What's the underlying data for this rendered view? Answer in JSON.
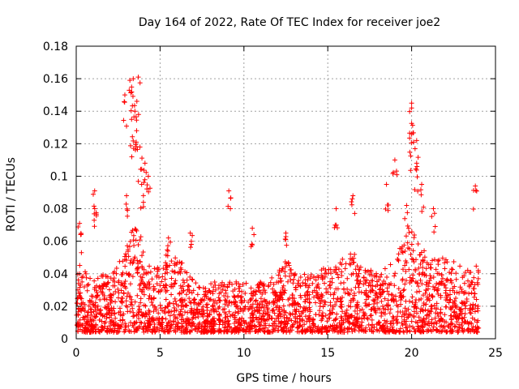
{
  "chart_data": {
    "type": "scatter",
    "title": "Day 164 of 2022, Rate Of TEC Index for receiver joe2",
    "xlabel": "GPS time / hours",
    "ylabel": "ROTI / TECUs",
    "xlim": [
      0,
      25
    ],
    "ylim": [
      0,
      0.18
    ],
    "grid": true,
    "marker": "+",
    "color": "#ff0000",
    "x_ticks": [
      {
        "value": 0,
        "label": "0"
      },
      {
        "value": 5,
        "label": "5"
      },
      {
        "value": 10,
        "label": "10"
      },
      {
        "value": 15,
        "label": "15"
      },
      {
        "value": 20,
        "label": "20"
      },
      {
        "value": 25,
        "label": "25"
      }
    ],
    "y_ticks": [
      {
        "value": 0,
        "label": "0"
      },
      {
        "value": 0.02,
        "label": "0.02"
      },
      {
        "value": 0.04,
        "label": "0.04"
      },
      {
        "value": 0.06,
        "label": "0.06"
      },
      {
        "value": 0.08,
        "label": "0.08"
      },
      {
        "value": 0.1,
        "label": "0.1"
      },
      {
        "value": 0.12,
        "label": "0.12"
      },
      {
        "value": 0.14,
        "label": "0.14"
      },
      {
        "value": 0.16,
        "label": "0.16"
      },
      {
        "value": 0.18,
        "label": "0.18"
      }
    ],
    "x_range_hours": [
      0,
      24
    ],
    "background_envelope": [
      {
        "x": 0.0,
        "y": 0.035
      },
      {
        "x": 0.3,
        "y": 0.055
      },
      {
        "x": 0.6,
        "y": 0.04
      },
      {
        "x": 1.0,
        "y": 0.035
      },
      {
        "x": 1.5,
        "y": 0.04
      },
      {
        "x": 2.0,
        "y": 0.04
      },
      {
        "x": 2.5,
        "y": 0.045
      },
      {
        "x": 3.0,
        "y": 0.06
      },
      {
        "x": 3.5,
        "y": 0.07
      },
      {
        "x": 4.0,
        "y": 0.06
      },
      {
        "x": 4.5,
        "y": 0.045
      },
      {
        "x": 5.0,
        "y": 0.045
      },
      {
        "x": 5.5,
        "y": 0.055
      },
      {
        "x": 6.0,
        "y": 0.05
      },
      {
        "x": 6.5,
        "y": 0.045
      },
      {
        "x": 7.0,
        "y": 0.035
      },
      {
        "x": 8.0,
        "y": 0.035
      },
      {
        "x": 9.0,
        "y": 0.035
      },
      {
        "x": 10.0,
        "y": 0.035
      },
      {
        "x": 11.0,
        "y": 0.035
      },
      {
        "x": 12.0,
        "y": 0.04
      },
      {
        "x": 12.5,
        "y": 0.05
      },
      {
        "x": 13.0,
        "y": 0.04
      },
      {
        "x": 14.0,
        "y": 0.04
      },
      {
        "x": 15.0,
        "y": 0.045
      },
      {
        "x": 16.0,
        "y": 0.05
      },
      {
        "x": 16.5,
        "y": 0.055
      },
      {
        "x": 17.0,
        "y": 0.045
      },
      {
        "x": 18.0,
        "y": 0.04
      },
      {
        "x": 19.0,
        "y": 0.05
      },
      {
        "x": 19.5,
        "y": 0.06
      },
      {
        "x": 20.0,
        "y": 0.07
      },
      {
        "x": 20.5,
        "y": 0.06
      },
      {
        "x": 21.0,
        "y": 0.05
      },
      {
        "x": 22.0,
        "y": 0.05
      },
      {
        "x": 23.0,
        "y": 0.045
      },
      {
        "x": 24.0,
        "y": 0.045
      }
    ],
    "notable_points": [
      {
        "x": 0.2,
        "y": 0.071
      },
      {
        "x": 1.1,
        "y": 0.091
      },
      {
        "x": 1.1,
        "y": 0.08
      },
      {
        "x": 2.9,
        "y": 0.15
      },
      {
        "x": 3.2,
        "y": 0.159
      },
      {
        "x": 3.4,
        "y": 0.16
      },
      {
        "x": 3.7,
        "y": 0.161
      },
      {
        "x": 3.5,
        "y": 0.14
      },
      {
        "x": 3.3,
        "y": 0.135
      },
      {
        "x": 3.6,
        "y": 0.128
      },
      {
        "x": 3.8,
        "y": 0.118
      },
      {
        "x": 4.1,
        "y": 0.108
      },
      {
        "x": 4.3,
        "y": 0.1
      },
      {
        "x": 3.9,
        "y": 0.095
      },
      {
        "x": 3.0,
        "y": 0.088
      },
      {
        "x": 5.5,
        "y": 0.062
      },
      {
        "x": 6.8,
        "y": 0.065
      },
      {
        "x": 9.1,
        "y": 0.091
      },
      {
        "x": 10.5,
        "y": 0.068
      },
      {
        "x": 12.5,
        "y": 0.065
      },
      {
        "x": 15.5,
        "y": 0.08
      },
      {
        "x": 16.5,
        "y": 0.088
      },
      {
        "x": 18.5,
        "y": 0.095
      },
      {
        "x": 19.0,
        "y": 0.11
      },
      {
        "x": 19.7,
        "y": 0.082
      },
      {
        "x": 20.0,
        "y": 0.145
      },
      {
        "x": 20.0,
        "y": 0.142
      },
      {
        "x": 20.0,
        "y": 0.126
      },
      {
        "x": 20.3,
        "y": 0.122
      },
      {
        "x": 20.3,
        "y": 0.108
      },
      {
        "x": 20.6,
        "y": 0.095
      },
      {
        "x": 21.3,
        "y": 0.08
      },
      {
        "x": 23.8,
        "y": 0.094
      }
    ]
  }
}
